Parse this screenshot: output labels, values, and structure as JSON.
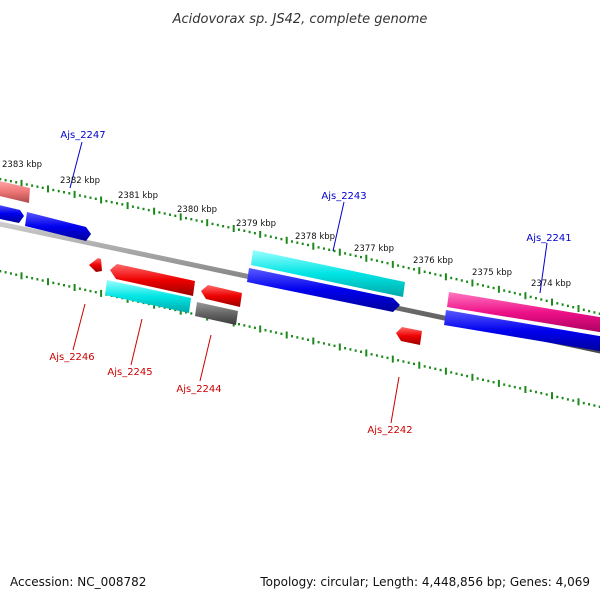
{
  "title": "Acidovorax sp. JS42, complete genome",
  "accession": "Accession: NC_008782",
  "summary": "Topology: circular; Length: 4,448,856 bp; Genes: 4,069",
  "colors": {
    "backbone": "#7a7a7a",
    "tick": "#1a8a1a",
    "forward_label": "#0000cc",
    "reverse_label": "#cc0000",
    "cds_blue": "#0000ee",
    "cds_red": "#ee0000",
    "cds_cyan": "#00e5e5",
    "cds_gray": "#666666",
    "cds_pink": "#ee1188",
    "cds_salmon": "#ee7777"
  },
  "ticks": [
    {
      "label": "2383 kbp",
      "kbp": 2383
    },
    {
      "label": "2382 kbp",
      "kbp": 2382
    },
    {
      "label": "2381 kbp",
      "kbp": 2381
    },
    {
      "label": "2380 kbp",
      "kbp": 2380
    },
    {
      "label": "2379 kbp",
      "kbp": 2379
    },
    {
      "label": "2378 kbp",
      "kbp": 2378
    },
    {
      "label": "2377 kbp",
      "kbp": 2377
    },
    {
      "label": "2376 kbp",
      "kbp": 2376
    },
    {
      "label": "2375 kbp",
      "kbp": 2375
    },
    {
      "label": "2374 kbp",
      "kbp": 2374
    }
  ],
  "gene_labels": [
    {
      "name": "Ajs_2247",
      "strand": "forward"
    },
    {
      "name": "Ajs_2243",
      "strand": "forward"
    },
    {
      "name": "Ajs_2241",
      "strand": "forward"
    },
    {
      "name": "Ajs_2246",
      "strand": "reverse"
    },
    {
      "name": "Ajs_2245",
      "strand": "reverse"
    },
    {
      "name": "Ajs_2244",
      "strand": "reverse"
    },
    {
      "name": "Ajs_2242",
      "strand": "reverse"
    }
  ]
}
